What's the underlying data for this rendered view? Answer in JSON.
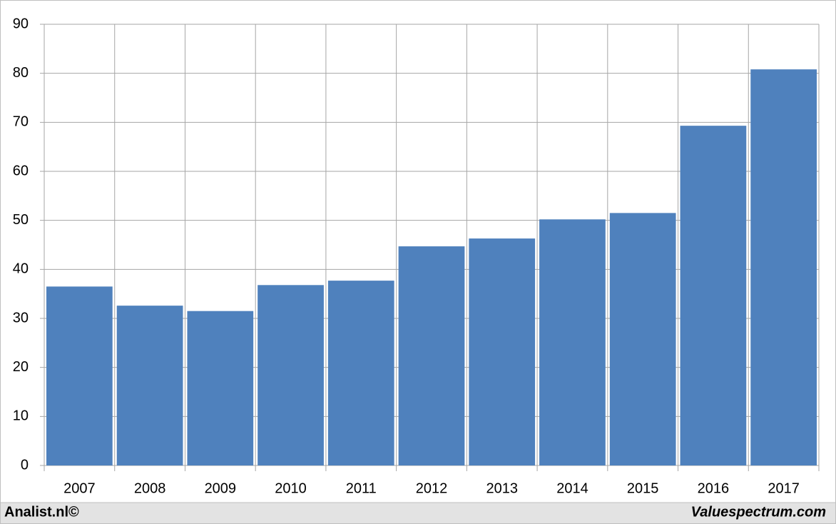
{
  "chart_data": {
    "type": "bar",
    "categories": [
      "2007",
      "2008",
      "2009",
      "2010",
      "2011",
      "2012",
      "2013",
      "2014",
      "2015",
      "2016",
      "2017"
    ],
    "values": [
      36.5,
      32.6,
      31.5,
      36.8,
      37.7,
      44.7,
      46.3,
      50.2,
      51.5,
      69.3,
      80.8
    ],
    "color": "#4f81bd",
    "ylim": [
      0,
      90
    ],
    "yticks": [
      0,
      10,
      20,
      30,
      40,
      50,
      60,
      70,
      80,
      90
    ],
    "grid": true
  },
  "footer": {
    "left": "Analist.nl©",
    "right": "Valuespectrum.com"
  }
}
